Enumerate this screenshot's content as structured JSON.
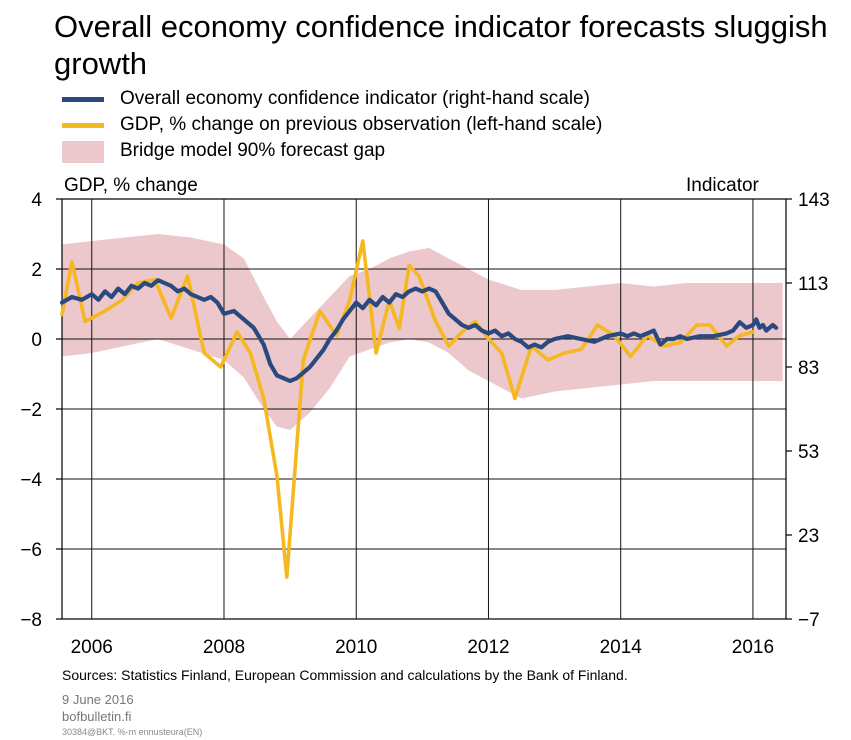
{
  "chart_data": {
    "type": "line",
    "title": "Overall economy confidence indicator forecasts sluggish growth",
    "ylabel_left": "GDP, % change",
    "ylabel_right": "Indicator",
    "ylim_left": [
      -8,
      4
    ],
    "ylim_right": [
      -7,
      143
    ],
    "yticks_left": [
      -8,
      -6,
      -4,
      -2,
      0,
      2,
      4
    ],
    "yticks_right": [
      -7,
      23,
      53,
      83,
      113,
      143
    ],
    "x_tick_labels": [
      "2006",
      "2008",
      "2010",
      "2012",
      "2014",
      "2016"
    ],
    "x_tick_years": [
      2006,
      2008,
      2010,
      2012,
      2014,
      2016
    ],
    "xlim": [
      2005.55,
      2016.5
    ],
    "grid": true,
    "legend_position": "top-left",
    "colors": {
      "confidence": "#2a4a7f",
      "gdp": "#f5b820",
      "band": "#ecc7cb"
    },
    "legend": [
      "Overall economy confidence indicator (right-hand scale)",
      "GDP, % change on previous observation (left-hand scale)",
      "Bridge model 90% forecast gap"
    ],
    "series": [
      {
        "name": "Overall economy confidence indicator (right-hand scale)",
        "axis": "right",
        "points": [
          [
            2005.55,
            106
          ],
          [
            2005.7,
            108
          ],
          [
            2005.85,
            107
          ],
          [
            2006.0,
            109
          ],
          [
            2006.1,
            107
          ],
          [
            2006.2,
            110
          ],
          [
            2006.3,
            108
          ],
          [
            2006.4,
            111
          ],
          [
            2006.5,
            109
          ],
          [
            2006.6,
            112
          ],
          [
            2006.7,
            111
          ],
          [
            2006.8,
            113
          ],
          [
            2006.9,
            112
          ],
          [
            2007.0,
            114
          ],
          [
            2007.1,
            113
          ],
          [
            2007.2,
            112
          ],
          [
            2007.3,
            110
          ],
          [
            2007.4,
            111
          ],
          [
            2007.5,
            109
          ],
          [
            2007.6,
            108
          ],
          [
            2007.7,
            107
          ],
          [
            2007.8,
            108
          ],
          [
            2007.9,
            106
          ],
          [
            2008.0,
            102
          ],
          [
            2008.15,
            103
          ],
          [
            2008.3,
            100
          ],
          [
            2008.45,
            97
          ],
          [
            2008.6,
            91
          ],
          [
            2008.7,
            84
          ],
          [
            2008.8,
            80
          ],
          [
            2008.9,
            79
          ],
          [
            2009.0,
            78
          ],
          [
            2009.1,
            79
          ],
          [
            2009.2,
            81
          ],
          [
            2009.3,
            83
          ],
          [
            2009.4,
            86
          ],
          [
            2009.5,
            89
          ],
          [
            2009.6,
            93
          ],
          [
            2009.7,
            96
          ],
          [
            2009.8,
            100
          ],
          [
            2009.9,
            103
          ],
          [
            2010.0,
            106
          ],
          [
            2010.1,
            104
          ],
          [
            2010.2,
            107
          ],
          [
            2010.3,
            105
          ],
          [
            2010.4,
            108
          ],
          [
            2010.5,
            106
          ],
          [
            2010.6,
            109
          ],
          [
            2010.7,
            108
          ],
          [
            2010.8,
            110
          ],
          [
            2010.9,
            111
          ],
          [
            2011.0,
            110
          ],
          [
            2011.1,
            111
          ],
          [
            2011.2,
            110
          ],
          [
            2011.3,
            106
          ],
          [
            2011.4,
            102
          ],
          [
            2011.5,
            100
          ],
          [
            2011.6,
            98
          ],
          [
            2011.7,
            97
          ],
          [
            2011.8,
            98
          ],
          [
            2011.9,
            96
          ],
          [
            2012.0,
            95
          ],
          [
            2012.1,
            96
          ],
          [
            2012.2,
            94
          ],
          [
            2012.3,
            95
          ],
          [
            2012.4,
            93
          ],
          [
            2012.5,
            92
          ],
          [
            2012.6,
            90
          ],
          [
            2012.7,
            91
          ],
          [
            2012.8,
            90
          ],
          [
            2012.9,
            92
          ],
          [
            2013.0,
            93
          ],
          [
            2013.2,
            94
          ],
          [
            2013.4,
            93
          ],
          [
            2013.6,
            92
          ],
          [
            2013.8,
            94
          ],
          [
            2014.0,
            95
          ],
          [
            2014.1,
            94
          ],
          [
            2014.2,
            95
          ],
          [
            2014.3,
            94
          ],
          [
            2014.4,
            95
          ],
          [
            2014.5,
            96
          ],
          [
            2014.6,
            91
          ],
          [
            2014.7,
            93
          ],
          [
            2014.8,
            93
          ],
          [
            2014.9,
            94
          ],
          [
            2015.0,
            93
          ],
          [
            2015.2,
            94
          ],
          [
            2015.4,
            94
          ],
          [
            2015.6,
            95
          ],
          [
            2015.7,
            96
          ],
          [
            2015.8,
            99
          ],
          [
            2015.9,
            97
          ],
          [
            2016.0,
            98
          ],
          [
            2016.05,
            100
          ],
          [
            2016.1,
            97
          ],
          [
            2016.15,
            98
          ],
          [
            2016.2,
            96
          ],
          [
            2016.3,
            98
          ],
          [
            2016.35,
            97
          ]
        ]
      },
      {
        "name": "GDP, % change on previous observation (left-hand scale)",
        "axis": "left",
        "points": [
          [
            2005.55,
            0.7
          ],
          [
            2005.7,
            2.2
          ],
          [
            2005.9,
            0.5
          ],
          [
            2006.2,
            0.8
          ],
          [
            2006.45,
            1.1
          ],
          [
            2006.7,
            1.6
          ],
          [
            2006.95,
            1.7
          ],
          [
            2007.2,
            0.6
          ],
          [
            2007.45,
            1.8
          ],
          [
            2007.7,
            -0.4
          ],
          [
            2007.95,
            -0.8
          ],
          [
            2008.2,
            0.2
          ],
          [
            2008.4,
            -0.4
          ],
          [
            2008.6,
            -1.7
          ],
          [
            2008.8,
            -3.9
          ],
          [
            2008.95,
            -6.8
          ],
          [
            2009.2,
            -0.6
          ],
          [
            2009.45,
            0.8
          ],
          [
            2009.7,
            0.1
          ],
          [
            2009.9,
            1.1
          ],
          [
            2010.1,
            2.8
          ],
          [
            2010.3,
            -0.4
          ],
          [
            2010.5,
            1.1
          ],
          [
            2010.65,
            0.3
          ],
          [
            2010.8,
            2.1
          ],
          [
            2010.95,
            1.8
          ],
          [
            2011.2,
            0.5
          ],
          [
            2011.4,
            -0.2
          ],
          [
            2011.6,
            0.2
          ],
          [
            2011.8,
            0.5
          ],
          [
            2012.0,
            0.0
          ],
          [
            2012.2,
            -0.4
          ],
          [
            2012.4,
            -1.7
          ],
          [
            2012.65,
            -0.2
          ],
          [
            2012.9,
            -0.6
          ],
          [
            2013.15,
            -0.4
          ],
          [
            2013.4,
            -0.3
          ],
          [
            2013.65,
            0.4
          ],
          [
            2013.9,
            0.1
          ],
          [
            2014.15,
            -0.5
          ],
          [
            2014.4,
            0.1
          ],
          [
            2014.65,
            -0.2
          ],
          [
            2014.9,
            -0.1
          ],
          [
            2015.15,
            0.4
          ],
          [
            2015.35,
            0.4
          ],
          [
            2015.6,
            -0.2
          ],
          [
            2015.8,
            0.1
          ],
          [
            2016.0,
            0.2
          ]
        ]
      },
      {
        "name": "Bridge model 90% forecast gap",
        "axis": "left",
        "type": "area",
        "upper": [
          [
            2005.55,
            2.7
          ],
          [
            2006.0,
            2.8
          ],
          [
            2006.5,
            2.9
          ],
          [
            2007.0,
            3.0
          ],
          [
            2007.5,
            2.9
          ],
          [
            2008.0,
            2.7
          ],
          [
            2008.3,
            2.3
          ],
          [
            2008.6,
            1.2
          ],
          [
            2008.8,
            0.5
          ],
          [
            2009.0,
            0.0
          ],
          [
            2009.3,
            0.6
          ],
          [
            2009.6,
            1.2
          ],
          [
            2009.9,
            1.8
          ],
          [
            2010.2,
            2.0
          ],
          [
            2010.5,
            2.3
          ],
          [
            2010.8,
            2.5
          ],
          [
            2011.1,
            2.6
          ],
          [
            2011.4,
            2.3
          ],
          [
            2011.7,
            2.0
          ],
          [
            2012.0,
            1.7
          ],
          [
            2012.5,
            1.4
          ],
          [
            2013.0,
            1.4
          ],
          [
            2013.5,
            1.5
          ],
          [
            2014.0,
            1.6
          ],
          [
            2014.5,
            1.5
          ],
          [
            2015.0,
            1.6
          ],
          [
            2015.5,
            1.6
          ],
          [
            2016.0,
            1.6
          ],
          [
            2016.45,
            1.6
          ]
        ],
        "lower": [
          [
            2005.55,
            -0.5
          ],
          [
            2006.0,
            -0.4
          ],
          [
            2006.5,
            -0.2
          ],
          [
            2007.0,
            0.0
          ],
          [
            2007.5,
            -0.3
          ],
          [
            2008.0,
            -0.6
          ],
          [
            2008.3,
            -1.1
          ],
          [
            2008.6,
            -2.0
          ],
          [
            2008.8,
            -2.5
          ],
          [
            2009.0,
            -2.6
          ],
          [
            2009.3,
            -2.1
          ],
          [
            2009.6,
            -1.4
          ],
          [
            2009.9,
            -0.5
          ],
          [
            2010.2,
            -0.3
          ],
          [
            2010.5,
            -0.1
          ],
          [
            2010.8,
            0.0
          ],
          [
            2011.1,
            -0.1
          ],
          [
            2011.4,
            -0.4
          ],
          [
            2011.7,
            -0.9
          ],
          [
            2012.0,
            -1.2
          ],
          [
            2012.5,
            -1.7
          ],
          [
            2013.0,
            -1.5
          ],
          [
            2013.5,
            -1.4
          ],
          [
            2014.0,
            -1.3
          ],
          [
            2014.5,
            -1.2
          ],
          [
            2015.0,
            -1.2
          ],
          [
            2015.5,
            -1.2
          ],
          [
            2016.0,
            -1.2
          ],
          [
            2016.45,
            -1.2
          ]
        ]
      }
    ]
  },
  "footer": {
    "sources": "Sources: Statistics Finland,  European Commission and calculations  by the Bank of Finland.",
    "date": "9 June 2016",
    "site": "bofbulletin.fi",
    "code": "30384@BKT. %-m ennusteura(EN)"
  }
}
